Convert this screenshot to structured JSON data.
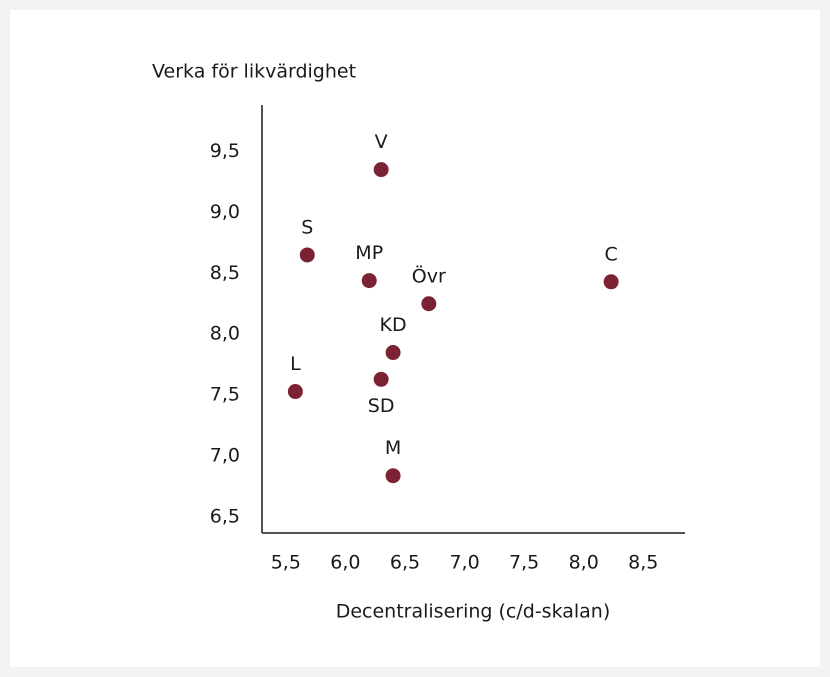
{
  "chart_data": {
    "type": "scatter",
    "y_axis_label": "Verka för likvärdighet",
    "x_axis_label": "Decentralisering (c/d-skalan)",
    "point_labels": [
      "V",
      "S",
      "MP",
      "Övr",
      "C",
      "KD",
      "SD",
      "L",
      "M"
    ],
    "label_positions": [
      "above",
      "above",
      "above",
      "above",
      "above",
      "above",
      "below",
      "above",
      "above"
    ],
    "x": [
      6.3,
      5.68,
      6.2,
      6.7,
      8.23,
      6.4,
      6.3,
      5.58,
      6.4
    ],
    "values": [
      9.35,
      8.65,
      8.44,
      8.25,
      8.43,
      7.85,
      7.63,
      7.53,
      6.84
    ],
    "color": "#7b2335",
    "xlim": [
      5.3,
      8.85
    ],
    "ylim": [
      6.37,
      9.88
    ],
    "xticks": [
      {
        "value": 5.5,
        "label": "5,5"
      },
      {
        "value": 6.0,
        "label": "6,0"
      },
      {
        "value": 6.5,
        "label": "6,5"
      },
      {
        "value": 7.0,
        "label": "7,0"
      },
      {
        "value": 7.5,
        "label": "7,5"
      },
      {
        "value": 8.0,
        "label": "8,0"
      },
      {
        "value": 8.5,
        "label": "8,5"
      }
    ],
    "yticks": [
      {
        "value": 6.5,
        "label": "6,5"
      },
      {
        "value": 7.0,
        "label": "7,0"
      },
      {
        "value": 7.5,
        "label": "7,5"
      },
      {
        "value": 8.0,
        "label": "8,0"
      },
      {
        "value": 8.5,
        "label": "8,5"
      },
      {
        "value": 9.0,
        "label": "9,0"
      },
      {
        "value": 9.5,
        "label": "9,5"
      }
    ],
    "grid": false
  }
}
